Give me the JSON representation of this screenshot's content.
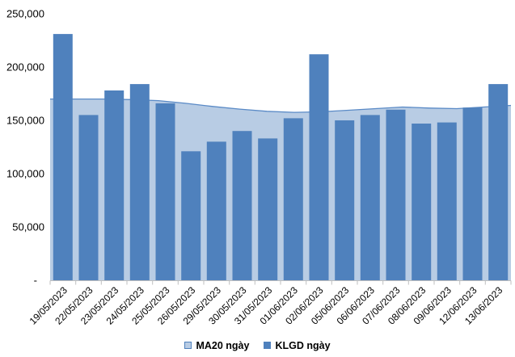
{
  "chart": {
    "background": "#ffffff",
    "axis_color": "#bfbfbf",
    "text_color": "#000000"
  },
  "chart_data": {
    "type": "combo-area-bar",
    "title": "",
    "xlabel": "",
    "ylabel": "",
    "categories": [
      "19/05/2023",
      "22/05/2023",
      "23/05/2023",
      "24/05/2023",
      "25/05/2023",
      "26/05/2023",
      "29/05/2023",
      "30/05/2023",
      "31/05/2023",
      "01/06/2023",
      "02/06/2023",
      "05/06/2023",
      "06/06/2023",
      "07/06/2023",
      "08/06/2023",
      "09/06/2023",
      "12/06/2023",
      "13/06/2023"
    ],
    "series": [
      {
        "name": "MA20 ngày",
        "type": "area",
        "fill_color": "#b8cce4",
        "line_color": "#5a8ac6",
        "values": [
          170000,
          170000,
          170000,
          169500,
          168500,
          166000,
          163000,
          160500,
          158500,
          157500,
          158000,
          159500,
          161000,
          162500,
          161500,
          161000,
          162500,
          164000
        ]
      },
      {
        "name": "KLGD ngày",
        "type": "bar",
        "color": "#4f81bd",
        "values": [
          231000,
          155000,
          178000,
          184000,
          166000,
          121000,
          130000,
          140000,
          133000,
          152000,
          212000,
          150000,
          155000,
          160000,
          147000,
          148000,
          162000,
          184000
        ]
      }
    ],
    "ylim": [
      0,
      250000
    ],
    "ytick_interval": 50000,
    "ytick_labels": [
      "250,000",
      "200,000",
      "150,000",
      "100,000",
      "50,000",
      "-"
    ],
    "xtick_rotation": -45,
    "grid": false,
    "legend_position": "bottom"
  }
}
